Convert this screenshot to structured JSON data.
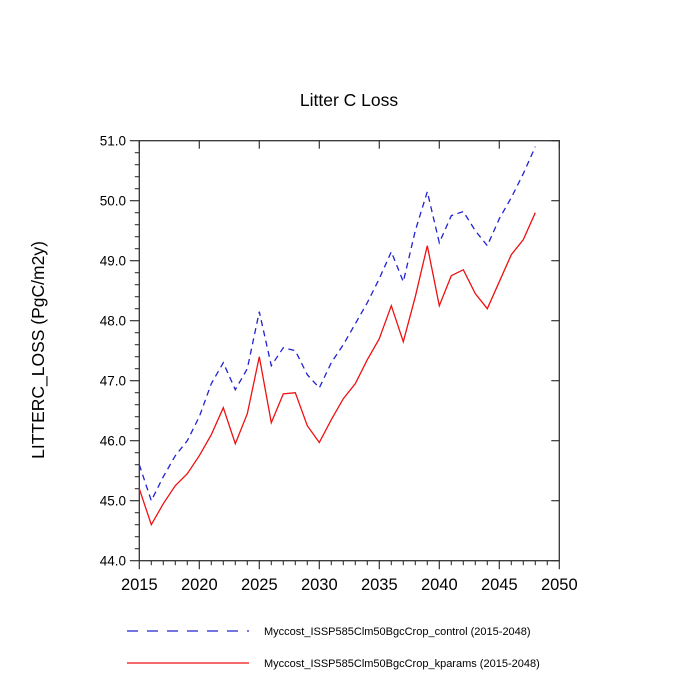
{
  "chart_data": {
    "type": "line",
    "title": "Litter C Loss",
    "ylabel": "LITTERC_LOSS (PgC/m2y)",
    "xlabel": "",
    "xlim": [
      2015,
      2050
    ],
    "ylim": [
      44.0,
      51.0
    ],
    "x_major_ticks": [
      2015,
      2020,
      2025,
      2030,
      2035,
      2040,
      2045,
      2050
    ],
    "x_minor_step": 1,
    "y_major_ticks": [
      44.0,
      45.0,
      46.0,
      47.0,
      48.0,
      49.0,
      50.0,
      51.0
    ],
    "y_minor_step": 0.2,
    "grid": false,
    "legend_position": "bottom",
    "years": [
      2015,
      2016,
      2017,
      2018,
      2019,
      2020,
      2021,
      2022,
      2023,
      2024,
      2025,
      2026,
      2027,
      2028,
      2029,
      2030,
      2031,
      2032,
      2033,
      2034,
      2035,
      2036,
      2037,
      2038,
      2039,
      2040,
      2041,
      2042,
      2043,
      2044,
      2045,
      2046,
      2047,
      2048
    ],
    "series": [
      {
        "name": "Myccost_ISSP585Clm50BgcCrop_control (2015-2048)",
        "color": "#2222d2",
        "style": "dashed",
        "values": [
          45.6,
          45.0,
          45.4,
          45.75,
          46.0,
          46.4,
          46.95,
          47.3,
          46.85,
          47.2,
          48.15,
          47.25,
          47.55,
          47.5,
          47.1,
          46.88,
          47.3,
          47.6,
          47.95,
          48.3,
          48.7,
          49.15,
          48.65,
          49.5,
          50.15,
          49.3,
          49.75,
          49.82,
          49.5,
          49.25,
          49.7,
          50.05,
          50.45,
          50.9
        ]
      },
      {
        "name": "Myccost_ISSP585Clm50BgcCrop_kparams (2015-2048)",
        "color": "#ee1111",
        "style": "solid",
        "values": [
          45.2,
          44.6,
          44.95,
          45.25,
          45.45,
          45.75,
          46.1,
          46.55,
          45.95,
          46.45,
          47.4,
          46.3,
          46.78,
          46.8,
          46.25,
          45.97,
          46.35,
          46.7,
          46.95,
          47.35,
          47.7,
          48.25,
          47.65,
          48.4,
          49.25,
          48.25,
          48.75,
          48.85,
          48.45,
          48.2,
          48.65,
          49.1,
          49.35,
          49.8
        ]
      }
    ],
    "axis_color": "#333333"
  }
}
